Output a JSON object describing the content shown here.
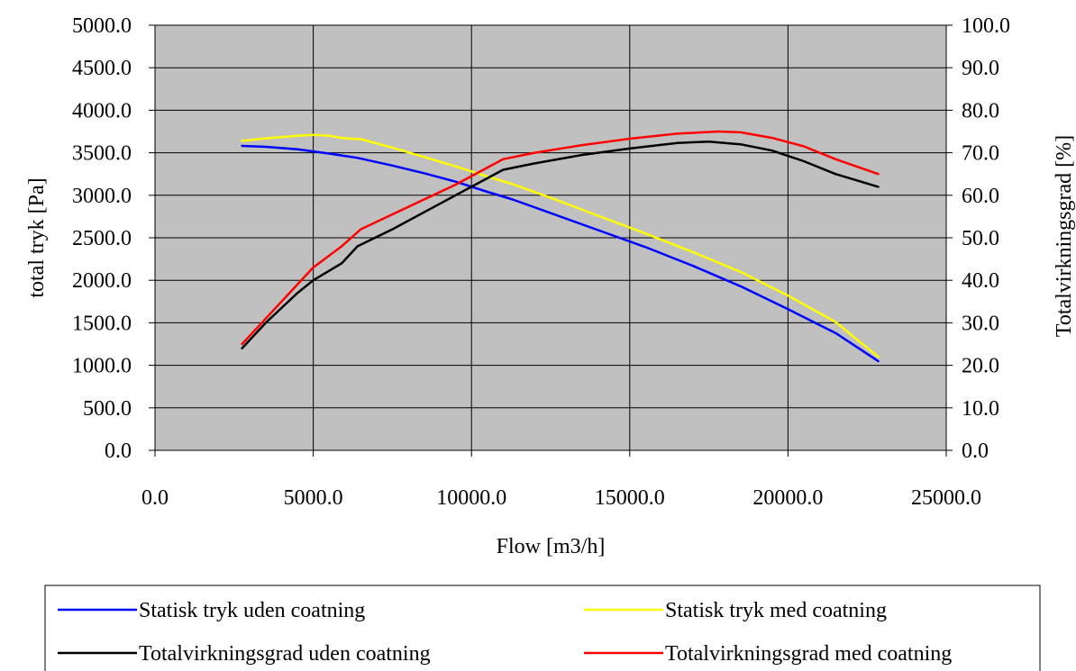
{
  "chart_data": {
    "type": "line",
    "xlabel": "Flow [m3/h]",
    "ylabel": "total tryk [Pa]",
    "y2label": "Totalvirkningsgrad [%]",
    "xlim": [
      0,
      25000
    ],
    "ylim": [
      0,
      5000
    ],
    "y2lim": [
      0,
      100
    ],
    "x_ticks": [
      "0.0",
      "5000.0",
      "10000.0",
      "15000.0",
      "20000.0",
      "25000.0"
    ],
    "y_ticks": [
      "0.0",
      "500.0",
      "1000.0",
      "1500.0",
      "2000.0",
      "2500.0",
      "3000.0",
      "3500.0",
      "4000.0",
      "4500.0",
      "5000.0"
    ],
    "y2_ticks": [
      "0.0",
      "10.0",
      "20.0",
      "30.0",
      "40.0",
      "50.0",
      "60.0",
      "70.0",
      "80.0",
      "90.0",
      "100.0"
    ],
    "grid": true,
    "plot_background": "#c0c0c0",
    "legend_position": "bottom",
    "series": [
      {
        "name": "Statisk tryk uden coatning",
        "axis": "left",
        "color": "#0000ff",
        "x": [
          2750,
          3500,
          4500,
          5500,
          6400,
          7500,
          8500,
          9500,
          10500,
          11300,
          12500,
          14000,
          15500,
          17000,
          18500,
          20000,
          21500,
          22850
        ],
        "y": [
          3580,
          3570,
          3540,
          3490,
          3440,
          3350,
          3260,
          3160,
          3040,
          2950,
          2790,
          2590,
          2390,
          2170,
          1930,
          1660,
          1380,
          1050
        ]
      },
      {
        "name": "Statisk tryk med coatning",
        "axis": "left",
        "color": "#ffff00",
        "x": [
          2750,
          3500,
          4500,
          5000,
          5500,
          6000,
          6500,
          7500,
          8500,
          9500,
          10500,
          11300,
          12500,
          14000,
          15500,
          17000,
          18500,
          20000,
          21500,
          22850
        ],
        "y": [
          3640,
          3670,
          3700,
          3710,
          3700,
          3670,
          3660,
          3560,
          3450,
          3340,
          3220,
          3130,
          2970,
          2760,
          2550,
          2330,
          2100,
          1820,
          1510,
          1100
        ]
      },
      {
        "name": "Totalvirkningsgrad uden coatning",
        "axis": "right",
        "color": "#000000",
        "x": [
          2750,
          3500,
          4500,
          5000,
          5900,
          6400,
          7500,
          8500,
          9500,
          10500,
          11000,
          12000,
          13500,
          15000,
          16500,
          17500,
          18500,
          19500,
          20500,
          21500,
          22850
        ],
        "y": [
          24,
          30,
          37,
          40,
          44,
          48,
          52,
          56,
          60,
          64,
          66,
          67.5,
          69.5,
          71,
          72.3,
          72.6,
          72,
          70.5,
          68,
          65,
          62
        ]
      },
      {
        "name": "Totalvirkningsgrad med coatning",
        "axis": "right",
        "color": "#ff0000",
        "x": [
          2750,
          3500,
          4500,
          5000,
          5900,
          6500,
          7500,
          8500,
          9500,
          10500,
          11000,
          12000,
          13500,
          15000,
          16500,
          17800,
          18500,
          19500,
          20500,
          21500,
          22850
        ],
        "y": [
          25,
          31,
          39,
          43,
          48,
          52,
          55.5,
          59,
          62.5,
          66.5,
          68.5,
          70,
          71.8,
          73.3,
          74.5,
          75,
          74.8,
          73.5,
          71.5,
          68.5,
          65
        ]
      }
    ]
  }
}
